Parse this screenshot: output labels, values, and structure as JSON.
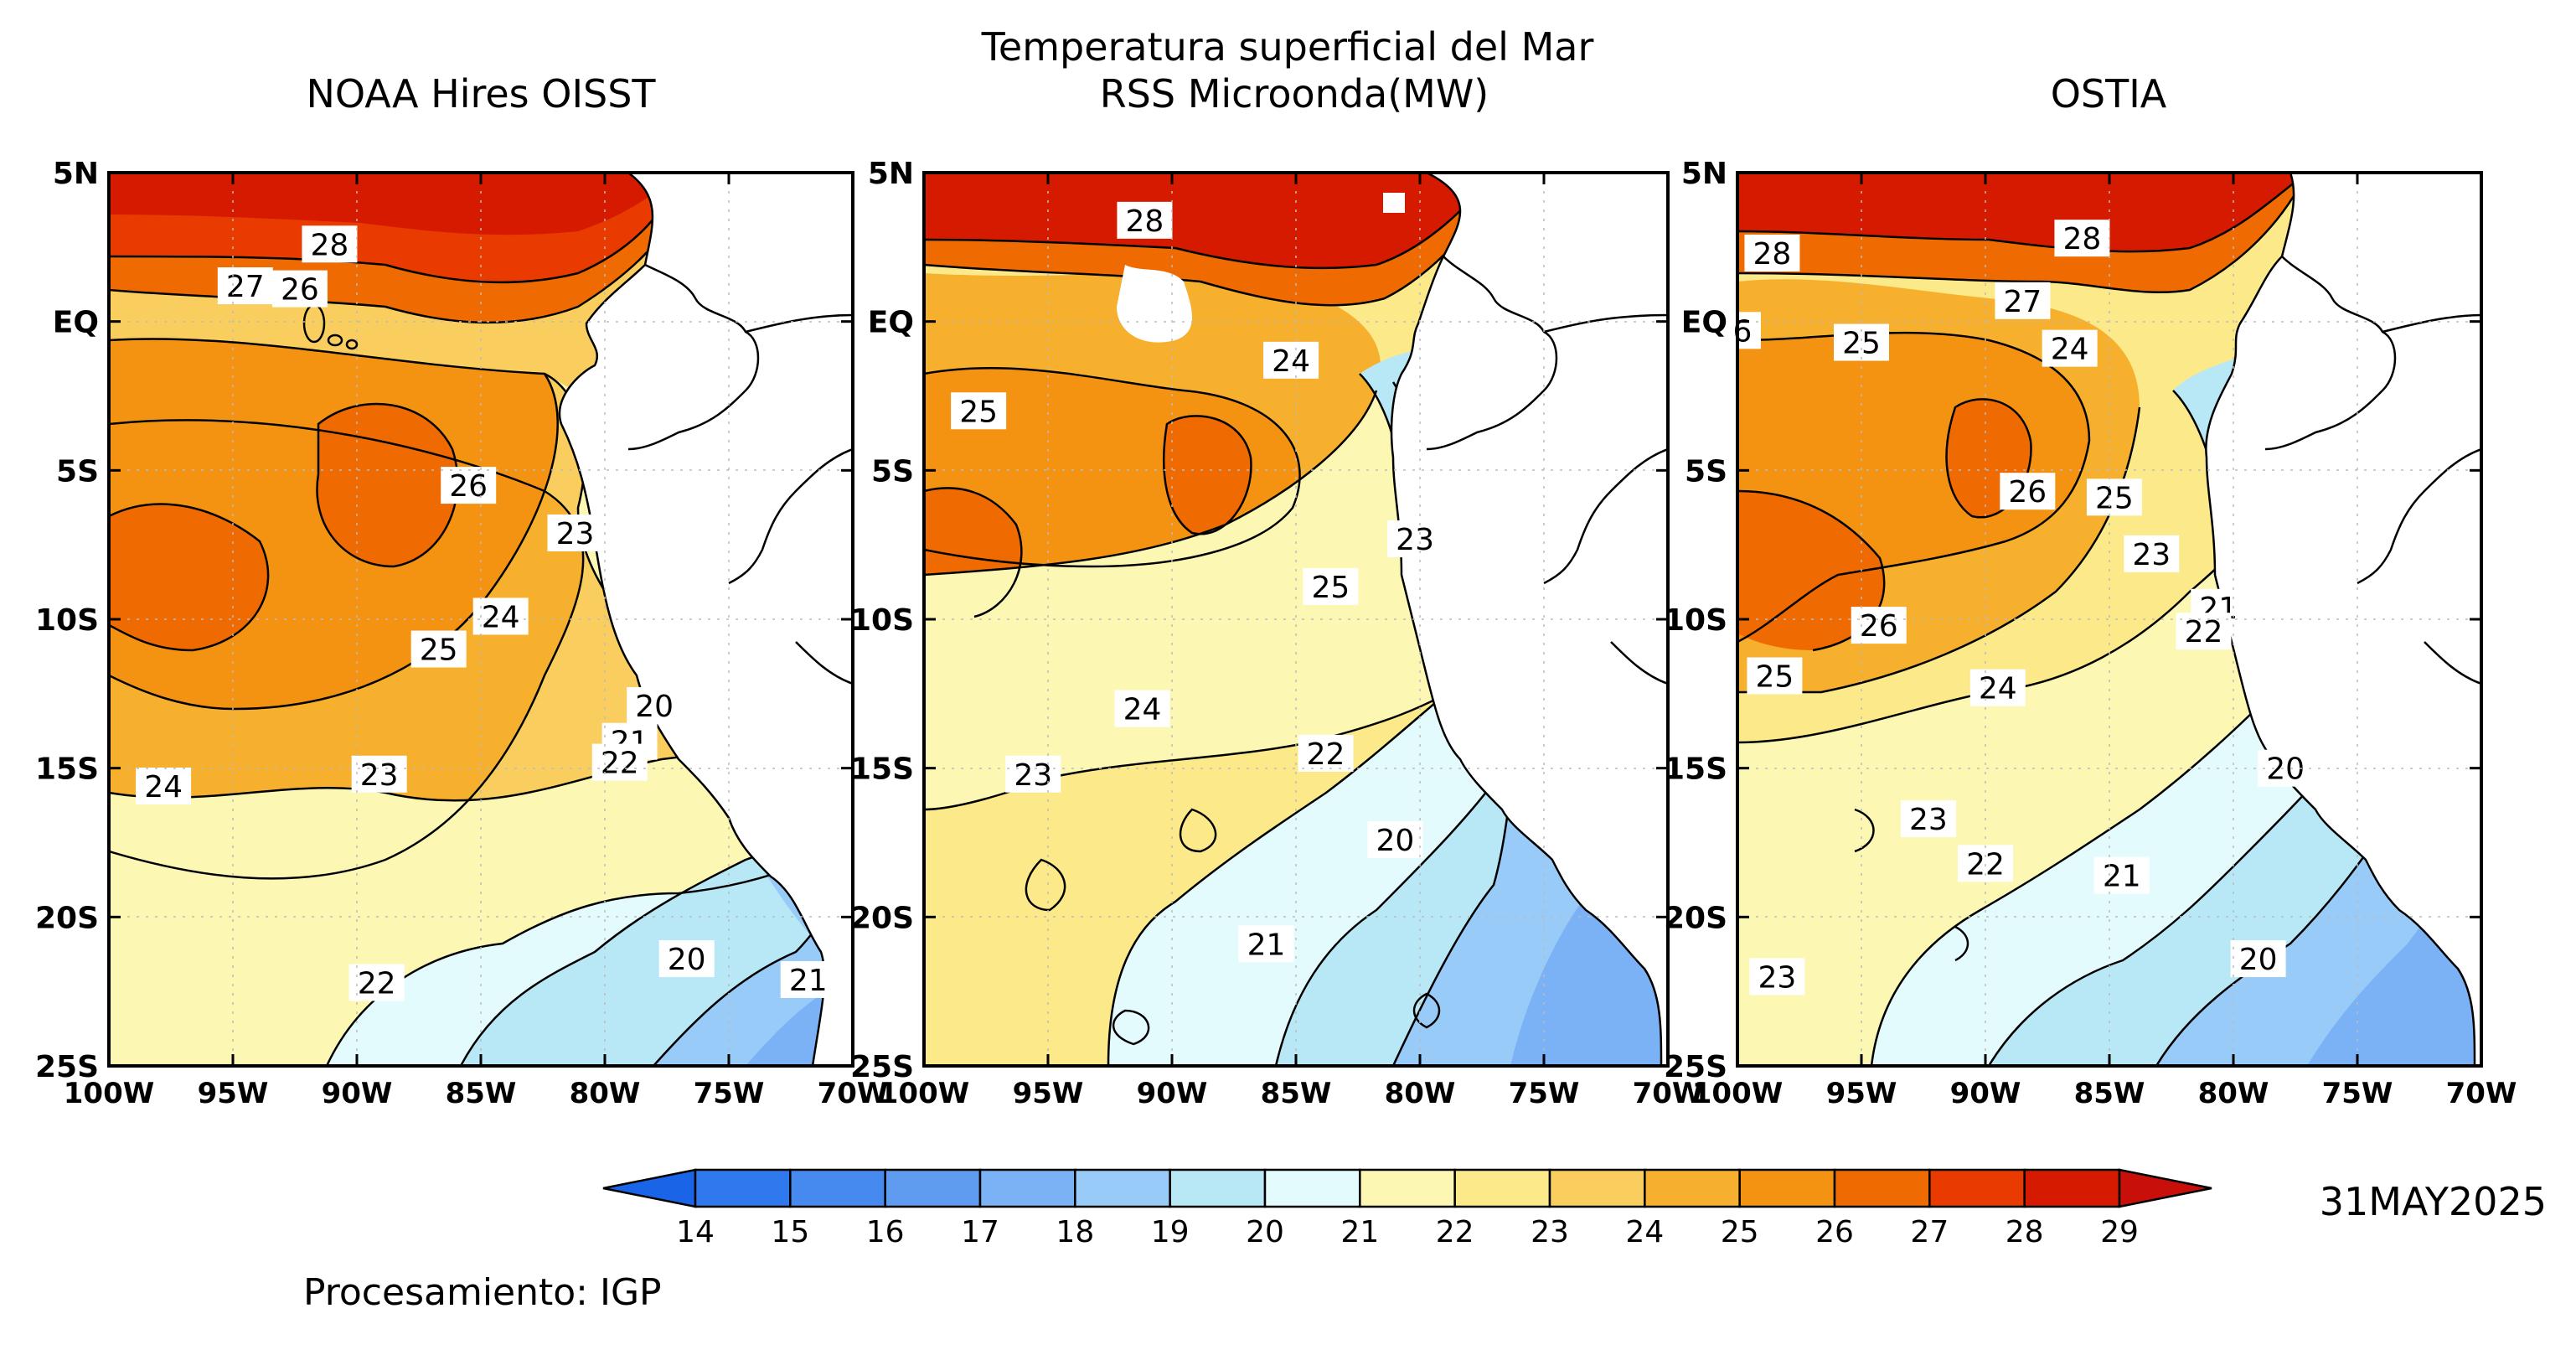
{
  "title": "Temperatura superficial del Mar",
  "panels": [
    {
      "title": "NOAA Hires OISST",
      "labels": [
        {
          "t": "28",
          "lon": -91.1,
          "lat": 2.6
        },
        {
          "t": "27",
          "lon": -94.5,
          "lat": 1.2
        },
        {
          "t": "26",
          "lon": -92.3,
          "lat": 1.1
        },
        {
          "t": "26",
          "lon": -85.5,
          "lat": -5.5
        },
        {
          "t": "23",
          "lon": -81.2,
          "lat": -7.1
        },
        {
          "t": "24",
          "lon": -84.2,
          "lat": -9.9
        },
        {
          "t": "25",
          "lon": -86.7,
          "lat": -11.0
        },
        {
          "t": "20",
          "lon": -78.0,
          "lat": -12.9
        },
        {
          "t": "21",
          "lon": -79.0,
          "lat": -14.1
        },
        {
          "t": "22",
          "lon": -79.4,
          "lat": -14.8
        },
        {
          "t": "23",
          "lon": -89.1,
          "lat": -15.2
        },
        {
          "t": "24",
          "lon": -97.8,
          "lat": -15.6
        },
        {
          "t": "20",
          "lon": -76.7,
          "lat": -21.4
        },
        {
          "t": "21",
          "lon": -71.8,
          "lat": -22.1
        },
        {
          "t": "22",
          "lon": -89.2,
          "lat": -22.2
        }
      ]
    },
    {
      "title": "RSS Microonda(MW)",
      "labels": [
        {
          "t": "28",
          "lon": -91.1,
          "lat": 3.4
        },
        {
          "t": "24",
          "lon": -85.2,
          "lat": -1.3
        },
        {
          "t": "25",
          "lon": -97.8,
          "lat": -3.0
        },
        {
          "t": "23",
          "lon": -80.2,
          "lat": -7.3
        },
        {
          "t": "25",
          "lon": -83.6,
          "lat": -8.9
        },
        {
          "t": "24",
          "lon": -91.2,
          "lat": -13.0
        },
        {
          "t": "22",
          "lon": -83.8,
          "lat": -14.5
        },
        {
          "t": "23",
          "lon": -95.6,
          "lat": -15.2
        },
        {
          "t": "20",
          "lon": -81.0,
          "lat": -17.4
        },
        {
          "t": "21",
          "lon": -86.2,
          "lat": -20.9
        }
      ]
    },
    {
      "title": "OSTIA",
      "labels": [
        {
          "t": "28",
          "lon": -98.6,
          "lat": 2.3
        },
        {
          "t": "28",
          "lon": -86.1,
          "lat": 2.8
        },
        {
          "t": "27",
          "lon": -88.5,
          "lat": 0.7
        },
        {
          "t": "6",
          "lon": -99.8,
          "lat": -0.3
        },
        {
          "t": "25",
          "lon": -95.0,
          "lat": -0.7
        },
        {
          "t": "24",
          "lon": -86.6,
          "lat": -0.9
        },
        {
          "t": "26",
          "lon": -88.3,
          "lat": -5.7
        },
        {
          "t": "25",
          "lon": -84.8,
          "lat": -5.9
        },
        {
          "t": "23",
          "lon": -83.3,
          "lat": -7.8
        },
        {
          "t": "21",
          "lon": -80.6,
          "lat": -9.6
        },
        {
          "t": "22",
          "lon": -81.2,
          "lat": -10.4
        },
        {
          "t": "26",
          "lon": -94.3,
          "lat": -10.2
        },
        {
          "t": "25",
          "lon": -98.5,
          "lat": -11.9
        },
        {
          "t": "24",
          "lon": -89.5,
          "lat": -12.3
        },
        {
          "t": "20",
          "lon": -77.9,
          "lat": -15.0
        },
        {
          "t": "23",
          "lon": -92.3,
          "lat": -16.7
        },
        {
          "t": "22",
          "lon": -90.0,
          "lat": -18.2
        },
        {
          "t": "21",
          "lon": -84.5,
          "lat": -18.6
        },
        {
          "t": "20",
          "lon": -79.0,
          "lat": -21.4
        },
        {
          "t": "23",
          "lon": -98.4,
          "lat": -22.0
        }
      ]
    }
  ],
  "axes": {
    "lat_labels": [
      "5N",
      "EQ",
      "5S",
      "10S",
      "15S",
      "20S",
      "25S"
    ],
    "lat_values": [
      5,
      0,
      -5,
      -10,
      -15,
      -20,
      -25
    ],
    "lon_labels": [
      "100W",
      "95W",
      "90W",
      "85W",
      "80W",
      "75W",
      "70W"
    ],
    "lon_values": [
      -100,
      -95,
      -90,
      -85,
      -80,
      -75,
      -70
    ]
  },
  "colorbar": {
    "labels": [
      "14",
      "15",
      "16",
      "17",
      "18",
      "19",
      "20",
      "21",
      "22",
      "23",
      "24",
      "25",
      "26",
      "27",
      "28",
      "29"
    ],
    "colors": [
      "#1a64e8",
      "#2f78ee",
      "#468af0",
      "#5f9cf0",
      "#7ab2f5",
      "#98cbf8",
      "#b8e8f6",
      "#e4fbfd",
      "#fdf7b4",
      "#fbe98a",
      "#f9ce5e",
      "#f6b02e",
      "#f49212",
      "#ef6a00",
      "#e93a00",
      "#d61a00",
      "#c80f0a"
    ]
  },
  "date": "31MAY2025",
  "credit": "Procesamiento: IGP"
}
